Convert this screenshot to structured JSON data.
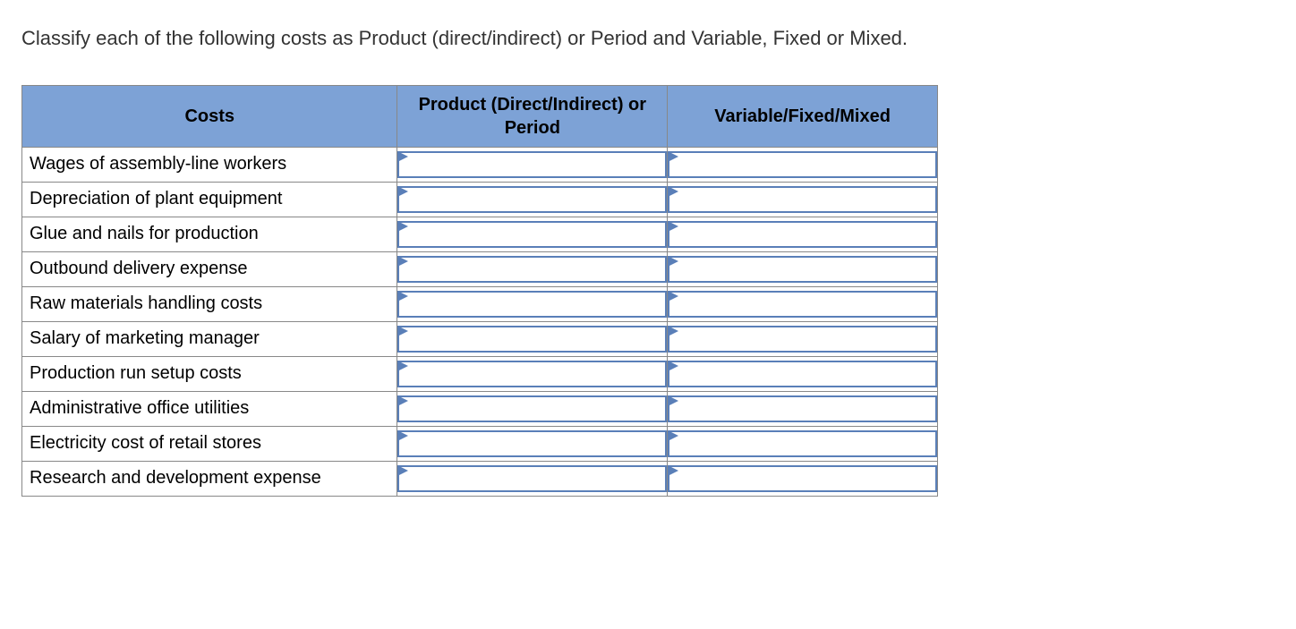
{
  "prompt": "Classify each of the following costs as Product (direct/indirect) or Period and Variable, Fixed or Mixed.",
  "table": {
    "columns": {
      "costs": "Costs",
      "product_period": "Product (Direct/Indirect) or Period",
      "vfm": "Variable/Fixed/Mixed"
    },
    "rows": [
      {
        "label": "Wages of assembly-line workers"
      },
      {
        "label": "Depreciation of plant equipment"
      },
      {
        "label": "Glue and nails for production"
      },
      {
        "label": "Outbound delivery expense"
      },
      {
        "label": "Raw materials handling costs"
      },
      {
        "label": "Salary of marketing manager"
      },
      {
        "label": "Production run setup costs"
      },
      {
        "label": "Administrative office utilities"
      },
      {
        "label": "Electricity cost of retail stores"
      },
      {
        "label": "Research and development expense"
      }
    ]
  },
  "colors": {
    "header_bg": "#7da2d6",
    "dropdown_border": "#5a7fb8",
    "cell_border": "#888888",
    "text": "#333333",
    "background": "#ffffff"
  }
}
